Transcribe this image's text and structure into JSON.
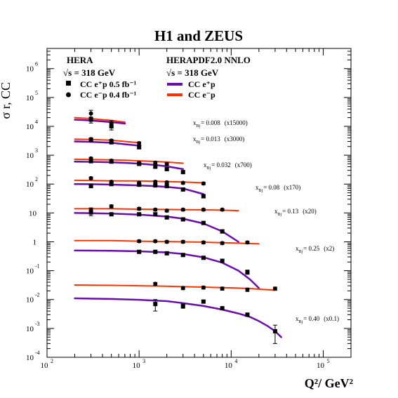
{
  "chart_data": {
    "type": "scatter",
    "title": "H1 and ZEUS",
    "xlabel": "Q²/ GeV²",
    "ylabel": "σ r, CC",
    "xscale": "log",
    "yscale": "log",
    "xlim": [
      100,
      200000
    ],
    "ylim": [
      0.0001,
      5000000
    ],
    "x_ticks": [
      {
        "v": 100,
        "base": "10",
        "exp": "2"
      },
      {
        "v": 1000,
        "base": "10",
        "exp": "3"
      },
      {
        "v": 10000,
        "base": "10",
        "exp": "4"
      },
      {
        "v": 100000,
        "base": "10",
        "exp": "5"
      }
    ],
    "y_ticks": [
      {
        "v": 0.0001,
        "base": "10",
        "exp": "-4"
      },
      {
        "v": 0.001,
        "base": "10",
        "exp": "-3"
      },
      {
        "v": 0.01,
        "base": "10",
        "exp": "-2"
      },
      {
        "v": 0.1,
        "base": "10",
        "exp": "-1"
      },
      {
        "v": 1,
        "base": "1",
        "exp": ""
      },
      {
        "v": 10,
        "base": "10",
        "exp": ""
      },
      {
        "v": 100,
        "base": "10",
        "exp": "2"
      },
      {
        "v": 1000,
        "base": "10",
        "exp": "3"
      },
      {
        "v": 10000,
        "base": "10",
        "exp": "4"
      },
      {
        "v": 100000,
        "base": "10",
        "exp": "5"
      },
      {
        "v": 1000000,
        "base": "10",
        "exp": "6"
      }
    ],
    "legend": {
      "position": "top-left",
      "data_heading": "HERA",
      "data_energy": "√s = 318 GeV",
      "data_entries": [
        {
          "marker": "square",
          "label": "CC e⁺p 0.5 fb⁻¹"
        },
        {
          "marker": "circle",
          "label": "CC e⁻p 0.4 fb⁻¹"
        }
      ],
      "fit_heading": "HERAPDF2.0 NNLO",
      "fit_energy": "√s = 318 GeV",
      "fit_entries": [
        {
          "color": "#6a0dad",
          "label": "CC e⁺p"
        },
        {
          "color": "#ff3300",
          "label": "CC e⁻p"
        }
      ]
    },
    "colors": {
      "eplus": "#6a0dad",
      "eminus": "#ff3300"
    },
    "bins": [
      {
        "label": "x",
        "sub": "Bj",
        "value_text": "= 0.008",
        "scale_text": "(x15000)",
        "eplus_fit": [
          [
            200,
            17000
          ],
          [
            300,
            16000
          ],
          [
            500,
            14000
          ],
          [
            700,
            12500
          ]
        ],
        "eminus_fit": [
          [
            200,
            20000
          ],
          [
            300,
            18500
          ],
          [
            500,
            16000
          ],
          [
            700,
            14000
          ]
        ],
        "eplus": [
          [
            300,
            17000,
            4000
          ],
          [
            500,
            10000,
            2500
          ]
        ],
        "eminus": [
          [
            300,
            28000,
            8000
          ],
          [
            500,
            13000,
            3000
          ]
        ]
      },
      {
        "label": "x",
        "sub": "Bj",
        "value_text": "= 0.013",
        "scale_text": "(x3000)",
        "eplus_fit": [
          [
            200,
            3000
          ],
          [
            300,
            2900
          ],
          [
            500,
            2700
          ],
          [
            700,
            2400
          ],
          [
            1000,
            2150
          ]
        ],
        "eminus_fit": [
          [
            200,
            3600
          ],
          [
            300,
            3500
          ],
          [
            500,
            3300
          ],
          [
            700,
            3000
          ],
          [
            1000,
            2700
          ]
        ],
        "eplus": [
          [
            300,
            3400,
            400
          ],
          [
            500,
            2800,
            300
          ],
          [
            1000,
            1900,
            250
          ]
        ],
        "eminus": [
          [
            300,
            3600,
            400
          ],
          [
            500,
            3200,
            350
          ],
          [
            1000,
            2600,
            300
          ]
        ]
      },
      {
        "label": "x",
        "sub": "Bj",
        "value_text": "= 0.032",
        "scale_text": "(x700)",
        "eplus_fit": [
          [
            200,
            600
          ],
          [
            300,
            590
          ],
          [
            500,
            570
          ],
          [
            700,
            545
          ],
          [
            1000,
            510
          ],
          [
            1500,
            460
          ],
          [
            2000,
            410
          ],
          [
            3000,
            330
          ]
        ],
        "eminus_fit": [
          [
            200,
            720
          ],
          [
            300,
            710
          ],
          [
            500,
            690
          ],
          [
            700,
            670
          ],
          [
            1000,
            640
          ],
          [
            1500,
            610
          ],
          [
            2000,
            580
          ],
          [
            3000,
            530
          ]
        ],
        "eplus": [
          [
            300,
            620,
            60
          ],
          [
            500,
            600,
            60
          ],
          [
            1000,
            500,
            50
          ],
          [
            1500,
            400,
            40
          ],
          [
            2000,
            330,
            35
          ],
          [
            3000,
            260,
            30
          ]
        ],
        "eminus": [
          [
            300,
            770,
            70
          ],
          [
            500,
            650,
            60
          ],
          [
            1000,
            540,
            50
          ],
          [
            1500,
            550,
            50
          ],
          [
            2000,
            500,
            50
          ]
        ]
      },
      {
        "label": "x",
        "sub": "Bj",
        "value_text": "= 0.08",
        "scale_text": "(x170)",
        "eplus_fit": [
          [
            200,
            100
          ],
          [
            300,
            99
          ],
          [
            500,
            96
          ],
          [
            1000,
            90
          ],
          [
            1500,
            85
          ],
          [
            2000,
            80
          ],
          [
            3000,
            70
          ],
          [
            5000,
            45
          ]
        ],
        "eminus_fit": [
          [
            200,
            135
          ],
          [
            300,
            133
          ],
          [
            500,
            130
          ],
          [
            1000,
            128
          ],
          [
            1500,
            125
          ],
          [
            2000,
            122
          ],
          [
            3000,
            118
          ],
          [
            5000,
            110
          ]
        ],
        "eplus": [
          [
            300,
            85,
            10
          ],
          [
            500,
            100,
            10
          ],
          [
            1000,
            95,
            9
          ],
          [
            1500,
            90,
            9
          ],
          [
            2000,
            85,
            9
          ],
          [
            3000,
            65,
            7
          ],
          [
            5000,
            38,
            5
          ]
        ],
        "eminus": [
          [
            300,
            160,
            15
          ],
          [
            500,
            120,
            12
          ],
          [
            1000,
            110,
            10
          ],
          [
            1500,
            120,
            12
          ],
          [
            2000,
            115,
            11
          ],
          [
            3000,
            110,
            10
          ],
          [
            5000,
            105,
            10
          ]
        ]
      },
      {
        "label": "x",
        "sub": "Bj",
        "value_text": "= 0.13",
        "scale_text": "(x20)",
        "eplus_fit": [
          [
            200,
            10
          ],
          [
            300,
            9.8
          ],
          [
            500,
            9.5
          ],
          [
            1000,
            8.8
          ],
          [
            2000,
            7.5
          ],
          [
            3000,
            6.3
          ],
          [
            5000,
            4.3
          ],
          [
            8000,
            2.3
          ],
          [
            12000,
            1
          ]
        ],
        "eminus_fit": [
          [
            200,
            14
          ],
          [
            300,
            14
          ],
          [
            500,
            14
          ],
          [
            1000,
            13.5
          ],
          [
            2000,
            13.2
          ],
          [
            3000,
            13
          ],
          [
            5000,
            12.8
          ],
          [
            8000,
            12.5
          ],
          [
            12000,
            12
          ]
        ],
        "eplus": [
          [
            300,
            11,
            3
          ],
          [
            500,
            9,
            1
          ],
          [
            1000,
            9,
            1
          ],
          [
            1500,
            9,
            1
          ],
          [
            2000,
            7,
            0.8
          ],
          [
            3000,
            6,
            0.7
          ],
          [
            5000,
            4.5,
            0.5
          ],
          [
            8000,
            2.3,
            0.3
          ]
        ],
        "eminus": [
          [
            300,
            12,
            3
          ],
          [
            500,
            17,
            2
          ],
          [
            1000,
            14,
            1.5
          ],
          [
            1500,
            13,
            1.3
          ],
          [
            2000,
            12,
            1.2
          ],
          [
            3000,
            13,
            1.3
          ],
          [
            5000,
            13,
            1.3
          ],
          [
            8000,
            13,
            1.3
          ]
        ]
      },
      {
        "label": "x",
        "sub": "Bj",
        "value_text": "= 0.25",
        "scale_text": "(x2)",
        "eplus_fit": [
          [
            200,
            0.5
          ],
          [
            500,
            0.49
          ],
          [
            1000,
            0.47
          ],
          [
            2000,
            0.43
          ],
          [
            3000,
            0.38
          ],
          [
            5000,
            0.29
          ],
          [
            8000,
            0.19
          ],
          [
            12000,
            0.1
          ],
          [
            16000,
            0.05
          ],
          [
            20000,
            0.025
          ]
        ],
        "eminus_fit": [
          [
            200,
            1.1
          ],
          [
            500,
            1.1
          ],
          [
            1000,
            1.05
          ],
          [
            2000,
            1.02
          ],
          [
            3000,
            1.0
          ],
          [
            5000,
            0.97
          ],
          [
            8000,
            0.93
          ],
          [
            12000,
            0.9
          ],
          [
            16000,
            0.87
          ],
          [
            20000,
            0.85
          ]
        ],
        "eplus": [
          [
            1000,
            0.45,
            0.05
          ],
          [
            1500,
            0.45,
            0.05
          ],
          [
            2000,
            0.4,
            0.04
          ],
          [
            3000,
            0.35,
            0.04
          ],
          [
            5000,
            0.28,
            0.03
          ],
          [
            8000,
            0.22,
            0.025
          ],
          [
            15000,
            0.09,
            0.015
          ]
        ],
        "eminus": [
          [
            1000,
            1.05,
            0.1
          ],
          [
            1500,
            1.05,
            0.1
          ],
          [
            2000,
            1.0,
            0.1
          ],
          [
            3000,
            1.0,
            0.1
          ],
          [
            5000,
            0.95,
            0.1
          ],
          [
            8000,
            0.9,
            0.09
          ],
          [
            15000,
            0.95,
            0.1
          ]
        ]
      },
      {
        "label": "x",
        "sub": "Bj",
        "value_text": "= 0.40",
        "scale_text": "(x0.1)",
        "eplus_fit": [
          [
            200,
            0.011
          ],
          [
            500,
            0.0105
          ],
          [
            1000,
            0.0098
          ],
          [
            2000,
            0.0088
          ],
          [
            3000,
            0.0075
          ],
          [
            5000,
            0.006
          ],
          [
            8000,
            0.0045
          ],
          [
            12000,
            0.0033
          ],
          [
            16000,
            0.0025
          ],
          [
            20000,
            0.0018
          ],
          [
            25000,
            0.0012
          ],
          [
            30000,
            0.0008
          ],
          [
            35000,
            0.0005
          ]
        ],
        "eminus_fit": [
          [
            200,
            0.032
          ],
          [
            500,
            0.031
          ],
          [
            1000,
            0.03
          ],
          [
            2000,
            0.029
          ],
          [
            3000,
            0.028
          ],
          [
            5000,
            0.027
          ],
          [
            8000,
            0.026
          ],
          [
            12000,
            0.025
          ],
          [
            16000,
            0.024
          ],
          [
            20000,
            0.023
          ],
          [
            25000,
            0.022
          ],
          [
            30000,
            0.021
          ]
        ],
        "eplus": [
          [
            1500,
            0.007,
            0.003
          ],
          [
            3000,
            0.006,
            0.001
          ],
          [
            5000,
            0.0085,
            0.001
          ],
          [
            8000,
            0.005,
            0.0006
          ],
          [
            15000,
            0.003,
            0.0004
          ],
          [
            30000,
            0.0008,
            0.0005
          ]
        ],
        "eminus": [
          [
            1500,
            0.035,
            0.004
          ],
          [
            3000,
            0.025,
            0.003
          ],
          [
            5000,
            0.026,
            0.003
          ],
          [
            8000,
            0.024,
            0.003
          ],
          [
            15000,
            0.022,
            0.003
          ],
          [
            30000,
            0.024,
            0.003
          ]
        ]
      }
    ]
  }
}
